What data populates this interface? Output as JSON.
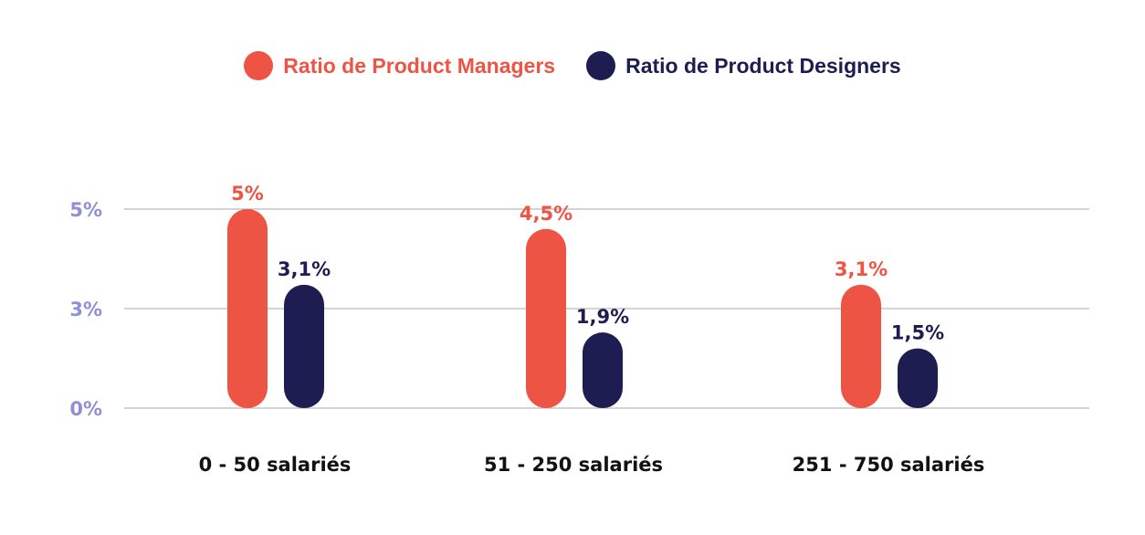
{
  "chart_data": {
    "type": "bar",
    "categories": [
      "0 - 50 salariés",
      "51 - 250 salariés",
      "251 - 750 salariés"
    ],
    "series": [
      {
        "name": "Ratio de Product Managers",
        "values": [
          5,
          4.5,
          3.1
        ],
        "labels": [
          "5%",
          "4,5%",
          "3,1%"
        ],
        "color": "#ee5444"
      },
      {
        "name": "Ratio de Product Designers",
        "values": [
          3.1,
          1.9,
          1.5
        ],
        "labels": [
          "3,1%",
          "1,9%",
          "1,5%"
        ],
        "color": "#1e1d52"
      }
    ],
    "y_ticks": [
      {
        "value": 0,
        "label": "0%"
      },
      {
        "value": 2.5,
        "label": "3%"
      },
      {
        "value": 5,
        "label": "5%"
      }
    ],
    "ylim": [
      0,
      5
    ],
    "grid": true,
    "legend_position": "top-center",
    "tick_color": "#8f8fd8",
    "grid_color": "#a8a8a8"
  }
}
